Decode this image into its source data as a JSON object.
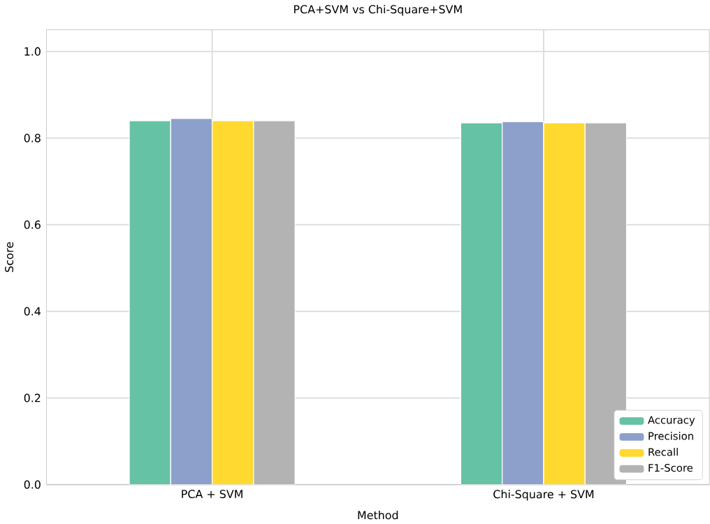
{
  "chart_data": {
    "type": "bar",
    "title": "PCA+SVM vs Chi-Square+SVM",
    "xlabel": "Method",
    "ylabel": "Score",
    "categories": [
      "PCA + SVM",
      "Chi-Square + SVM"
    ],
    "series": [
      {
        "name": "Accuracy",
        "color": "#66c2a5",
        "values": [
          0.84,
          0.835
        ]
      },
      {
        "name": "Precision",
        "color": "#8da0cb",
        "values": [
          0.845,
          0.838
        ]
      },
      {
        "name": "Recall",
        "color": "#ffd92f",
        "values": [
          0.84,
          0.835
        ]
      },
      {
        "name": "F1-Score",
        "color": "#b3b3b3",
        "values": [
          0.84,
          0.835
        ]
      }
    ],
    "ylim": [
      0,
      1.05
    ],
    "yticks": [
      {
        "value": 0,
        "label": "0.0"
      },
      0.2,
      0.4,
      0.6,
      0.8,
      {
        "value": 1,
        "label": "1.0"
      }
    ],
    "grid": true,
    "legend": "bottom right"
  }
}
